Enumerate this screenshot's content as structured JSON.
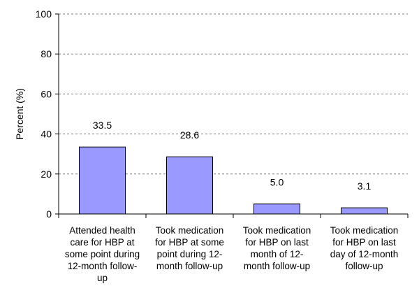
{
  "chart_data": {
    "type": "bar",
    "ylabel": "Percent  (%)",
    "ylim": [
      0,
      100
    ],
    "yticks": [
      0,
      20,
      40,
      60,
      80,
      100
    ],
    "grid": "horizontal dashed",
    "categories": [
      [
        "Attended health",
        "care for HBP at",
        "some point during",
        "12-month follow-",
        "up"
      ],
      [
        "Took medication",
        "for HBP at some",
        "point during 12-",
        "month follow-up"
      ],
      [
        "Took medication",
        "for HBP on last",
        "month of 12-",
        "month follow-up"
      ],
      [
        "Took medication",
        "for HBP on last",
        "day of 12-month",
        "follow-up"
      ]
    ],
    "values": [
      33.5,
      28.6,
      5.0,
      3.1
    ],
    "value_labels": [
      "33.5",
      "28.6",
      "5.0",
      "3.1"
    ],
    "colors": {
      "bar_fill": "#9999ff",
      "bar_stroke": "#000000",
      "grid": "#808080"
    }
  }
}
